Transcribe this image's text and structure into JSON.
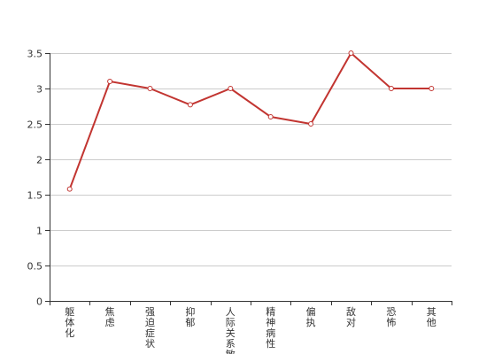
{
  "colors": {
    "series": "#c23531",
    "grid": "#cccccc",
    "axis": "#333333",
    "text": "#333333",
    "background": "#ffffff"
  },
  "chart_data": {
    "type": "line",
    "title": "",
    "xlabel": "",
    "ylabel": "",
    "grid": true,
    "legend": "none",
    "categories": [
      "躯体化",
      "焦虑",
      "强迫症状",
      "抑郁",
      "人际关系敏感",
      "精神病性",
      "偏执",
      "敌对",
      "恐怖",
      "其他"
    ],
    "y_ticks": [
      "0",
      "0.5",
      "1",
      "1.5",
      "2",
      "2.5",
      "3",
      "3.5"
    ],
    "ylim": [
      0,
      3.5
    ],
    "series": [
      {
        "values": [
          1.58,
          3.1,
          3.0,
          2.77,
          3.0,
          2.6,
          2.5,
          3.5,
          3.0,
          3.0
        ]
      }
    ]
  }
}
